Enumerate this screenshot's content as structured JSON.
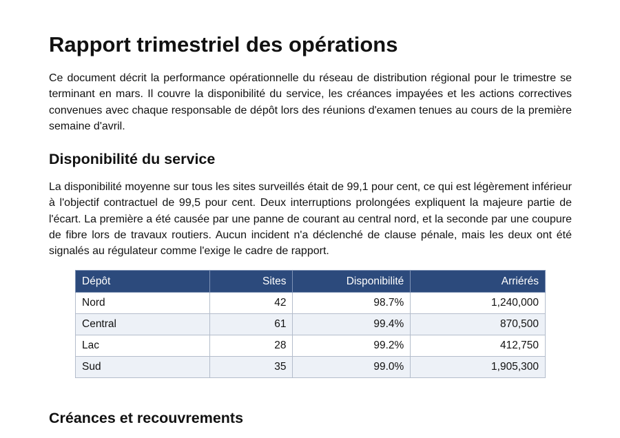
{
  "title": "Rapport trimestriel des opérations",
  "intro": "Ce document décrit la performance opérationnelle du réseau de distribution régional pour le trimestre se terminant en mars. Il couvre la disponibilité du service, les créances impayées et les actions correctives convenues avec chaque responsable de dépôt lors des réunions d'examen tenues au cours de la première semaine d'avril.",
  "section1": {
    "heading": "Disponibilité du service",
    "body": "La disponibilité moyenne sur tous les sites surveillés était de 99,1 pour cent, ce qui est légèrement inférieur à l'objectif contractuel de 99,5 pour cent. Deux interruptions prolongées expliquent la majeure partie de l'écart. La première a été causée par une panne de courant au central nord, et la seconde par une coupure de fibre lors de travaux routiers. Aucun incident n'a déclenché de clause pénale, mais les deux ont été signalés au régulateur comme l'exige le cadre de rapport."
  },
  "table": {
    "headers": [
      "Dépôt",
      "Sites",
      "Disponibilité",
      "Arriérés"
    ],
    "rows": [
      [
        "Nord",
        "42",
        "98.7%",
        "1,240,000"
      ],
      [
        "Central",
        "61",
        "99.4%",
        "870,500"
      ],
      [
        "Lac",
        "28",
        "99.2%",
        "412,750"
      ],
      [
        "Sud",
        "35",
        "99.0%",
        "1,905,300"
      ]
    ]
  },
  "section2": {
    "heading": "Créances et recouvrements"
  }
}
